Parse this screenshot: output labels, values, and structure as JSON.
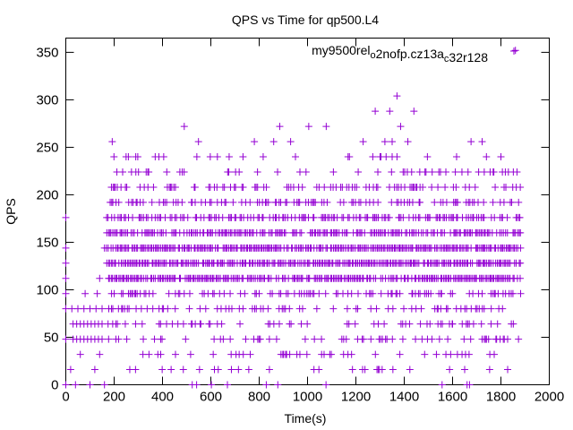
{
  "chart_data": {
    "type": "scatter",
    "title": "QPS vs Time for qp500.L4",
    "xlabel": "Time(s)",
    "ylabel": "QPS",
    "xlim": [
      0,
      2000
    ],
    "ylim": [
      0,
      365
    ],
    "xticks": [
      0,
      200,
      400,
      600,
      800,
      1000,
      1200,
      1400,
      1600,
      1800,
      2000
    ],
    "yticks": [
      0,
      50,
      100,
      150,
      200,
      250,
      300,
      350
    ],
    "grid": false,
    "legend_position": "top-right",
    "series_color": "#9400d3",
    "legend": {
      "base": "my9500",
      "parts": [
        {
          "text": "rel",
          "sub": "o"
        },
        {
          "text": "2nofp.cz13a",
          "sub": "c"
        },
        {
          "text": "32r128",
          "sub": ""
        }
      ]
    },
    "series": [
      {
        "levels": [
          0,
          16,
          32,
          48,
          64,
          80,
          96,
          112,
          128,
          144,
          160,
          176,
          192,
          208,
          224,
          240,
          256,
          272,
          288,
          304
        ],
        "points": [
          [
            0,
            176
          ],
          [
            0,
            144
          ],
          [
            0,
            128
          ],
          [
            0,
            112
          ],
          [
            0,
            96
          ],
          [
            0,
            80
          ],
          [
            0,
            48
          ],
          [
            0,
            0
          ],
          [
            20,
            16
          ],
          [
            40,
            0
          ],
          [
            60,
            32
          ],
          [
            80,
            96
          ],
          [
            100,
            0
          ],
          [
            120,
            16
          ],
          [
            140,
            32
          ],
          [
            160,
            0
          ],
          [
            30,
            64
          ],
          [
            30,
            48
          ],
          [
            45,
            64
          ],
          [
            45,
            48
          ],
          [
            60,
            64
          ],
          [
            60,
            48
          ],
          [
            75,
            64
          ],
          [
            75,
            48
          ],
          [
            90,
            64
          ],
          [
            90,
            48
          ],
          [
            105,
            64
          ],
          [
            105,
            48
          ],
          [
            120,
            64
          ],
          [
            120,
            48
          ],
          [
            135,
            64
          ],
          [
            135,
            48
          ],
          [
            150,
            64
          ],
          [
            150,
            48
          ],
          [
            25,
            80
          ],
          [
            50,
            80
          ],
          [
            75,
            80
          ],
          [
            100,
            80
          ],
          [
            125,
            80
          ],
          [
            150,
            80
          ],
          [
            130,
            96
          ],
          [
            140,
            112
          ],
          [
            160,
            144
          ],
          [
            490,
            272
          ],
          [
            885,
            272
          ],
          [
            1005,
            272
          ],
          [
            1385,
            272
          ],
          [
            1860,
            352
          ],
          [
            1370,
            304
          ],
          [
            1280,
            288
          ],
          [
            1340,
            288
          ],
          [
            1440,
            288
          ],
          [
            780,
            256
          ],
          [
            860,
            256
          ],
          [
            930,
            256
          ],
          [
            1230,
            256
          ],
          [
            1320,
            256
          ],
          [
            1350,
            256
          ],
          [
            1415,
            256
          ],
          [
            385,
            240
          ],
          [
            405,
            240
          ],
          [
            950,
            240
          ],
          [
            1300,
            240
          ],
          [
            1325,
            240
          ],
          [
            1350,
            240
          ],
          [
            1370,
            240
          ],
          [
            1740,
            240
          ],
          [
            1800,
            240
          ],
          [
            1660,
            0
          ],
          [
            1670,
            0
          ],
          [
            1650,
            16
          ],
          [
            1620,
            32
          ],
          [
            1580,
            48
          ],
          [
            1600,
            64
          ],
          [
            1540,
            80
          ],
          [
            1500,
            96
          ]
        ]
      }
    ]
  }
}
